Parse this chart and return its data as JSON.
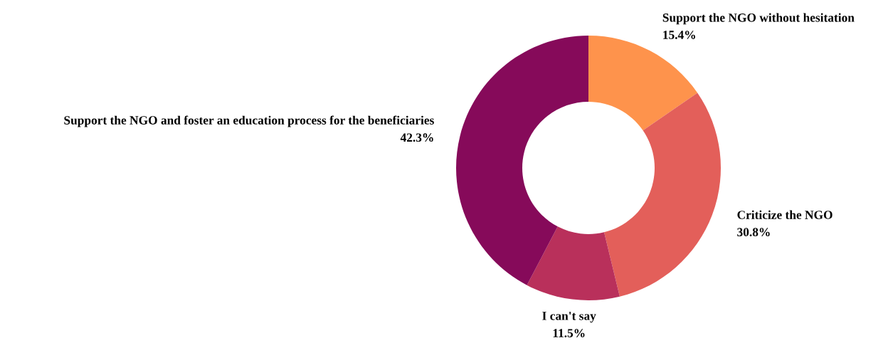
{
  "chart_data": {
    "type": "donut",
    "categories": [
      "Support the NGO without hesitation",
      "Criticize the NGO",
      "I can't say",
      "Support the NGO and foster an education process for the beneficiaries"
    ],
    "values": [
      15.4,
      30.8,
      11.5,
      42.3
    ],
    "value_labels": [
      "15.4%",
      "30.8%",
      "11.5%",
      "42.3%"
    ],
    "colors": [
      "#fe934c",
      "#e35f5a",
      "#b9305b",
      "#860a5a"
    ],
    "legend": false
  }
}
